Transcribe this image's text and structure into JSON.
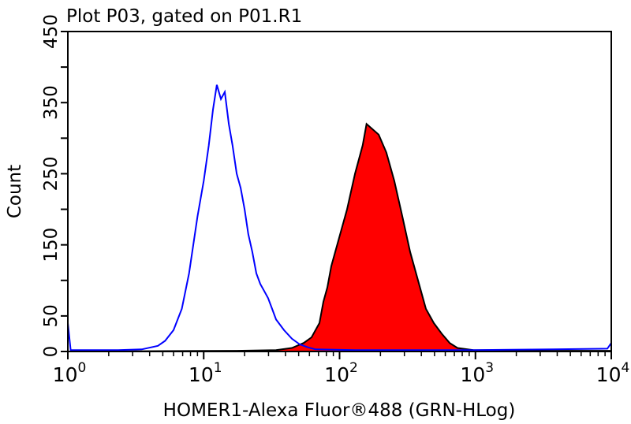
{
  "chart_data": {
    "type": "line",
    "title": "Plot P03, gated on P01.R1",
    "xlabel": "HOMER1-Alexa Fluor®488 (GRN-HLog)",
    "ylabel": "Count",
    "xscale": "log",
    "xlim": [
      1,
      10000
    ],
    "ylim": [
      0,
      450
    ],
    "x_ticks": [
      {
        "base": "10",
        "exp": "0",
        "value": 1
      },
      {
        "base": "10",
        "exp": "1",
        "value": 10
      },
      {
        "base": "10",
        "exp": "2",
        "value": 100
      },
      {
        "base": "10",
        "exp": "3",
        "value": 1000
      },
      {
        "base": "10",
        "exp": "4",
        "value": 10000
      }
    ],
    "y_tick_labels": [
      "0",
      "50",
      "150",
      "250",
      "350",
      "450"
    ],
    "y_ticks": [
      0,
      50,
      100,
      150,
      200,
      250,
      300,
      350,
      400,
      450
    ],
    "grid": false,
    "series": [
      {
        "style": "outline",
        "color": "#0000ff",
        "x": [
          1.0,
          1.05,
          2.35,
          3.5,
          4.6,
          5.2,
          6.0,
          6.9,
          7.8,
          9.0,
          10,
          10.9,
          11.7,
          12.5,
          13.4,
          14.3,
          15.3,
          16.3,
          17.5,
          18.7,
          20,
          21.3,
          22.8,
          24.4,
          26.1,
          27.9,
          29.8,
          31.9,
          34.1,
          39,
          44.6,
          51,
          58.2,
          66.5,
          130,
          964,
          3670,
          9350,
          10000
        ],
        "y": [
          40,
          2,
          2,
          3,
          8,
          15,
          30,
          60,
          110,
          190,
          240,
          290,
          340,
          375,
          355,
          365,
          320,
          290,
          250,
          230,
          200,
          165,
          140,
          110,
          95,
          85,
          75,
          60,
          45,
          30,
          18,
          10,
          6,
          3,
          2,
          2,
          3,
          4,
          12
        ]
      },
      {
        "style": "filled",
        "color": "#ff0000",
        "outline": "#000000",
        "x": [
          1.0,
          17.5,
          34.1,
          44.6,
          54.4,
          62.2,
          71.1,
          76,
          81.3,
          86.9,
          99.3,
          113.5,
          130,
          148,
          158,
          169,
          194,
          221,
          253,
          290,
          331,
          378,
          432,
          494,
          565,
          646,
          738,
          964,
          3670,
          10000
        ],
        "y": [
          0,
          1,
          2,
          5,
          12,
          20,
          40,
          70,
          90,
          120,
          160,
          200,
          250,
          290,
          320,
          315,
          305,
          280,
          240,
          190,
          140,
          100,
          60,
          40,
          25,
          12,
          5,
          2,
          1,
          1
        ]
      }
    ]
  }
}
